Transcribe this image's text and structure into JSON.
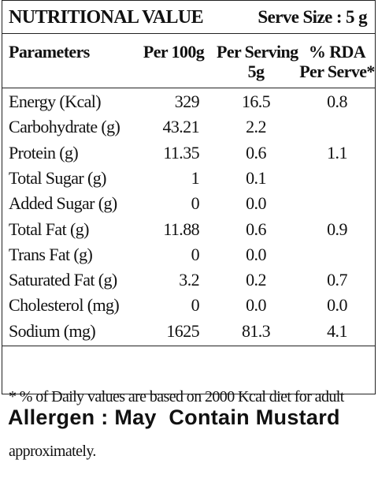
{
  "header": {
    "title": "NUTRITIONAL VALUE",
    "serve_size": "Serve Size : 5 g"
  },
  "table": {
    "columns": [
      "Parameters",
      "Per 100g",
      [
        "Per Serving",
        "5g"
      ],
      [
        "% RDA",
        "Per Serve*"
      ]
    ],
    "rows": [
      [
        "Energy (Kcal)",
        "329",
        "16.5",
        "0.8"
      ],
      [
        "Carbohydrate (g)",
        "43.21",
        "2.2"
      ],
      [
        "Protein (g)",
        "11.35",
        "0.6",
        "1.1"
      ],
      [
        "Total Sugar (g)",
        "1",
        "0.1"
      ],
      [
        "Added Sugar (g)",
        "0",
        "0.0"
      ],
      [
        "Total Fat (g)",
        "11.88",
        "0.6",
        "0.9"
      ],
      [
        "Trans Fat (g)",
        "0",
        "0.0"
      ],
      [
        "Saturated Fat (g)",
        "3.2",
        "0.2",
        "0.7"
      ],
      [
        "Cholesterol (mg)",
        "0",
        "0.0",
        "0.0"
      ],
      [
        "Sodium (mg)",
        "1625",
        "81.3",
        "4.1"
      ]
    ]
  },
  "footnote": [
    "* % of Daily values are based on 2000 Kcal diet for adult",
    "approximately."
  ],
  "allergen": "Allergen : May  Contain Mustard"
}
